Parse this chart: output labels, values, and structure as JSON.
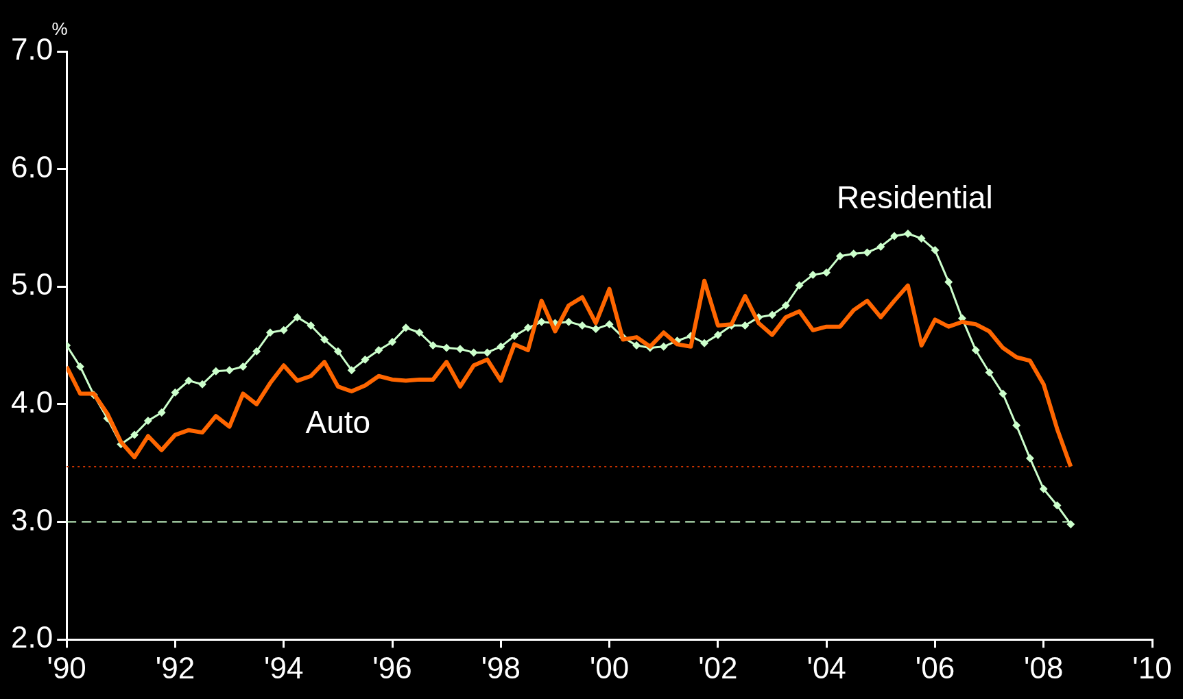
{
  "chart_data": {
    "type": "line",
    "ylabel": "%",
    "grid": false,
    "legend": false,
    "x": [
      1990,
      1990.25,
      1990.5,
      1990.75,
      1991,
      1991.25,
      1991.5,
      1991.75,
      1992,
      1992.25,
      1992.5,
      1992.75,
      1993,
      1993.25,
      1993.5,
      1993.75,
      1994,
      1994.25,
      1994.5,
      1994.75,
      1995,
      1995.25,
      1995.5,
      1995.75,
      1996,
      1996.25,
      1996.5,
      1996.75,
      1997,
      1997.25,
      1997.5,
      1997.75,
      1998,
      1998.25,
      1998.5,
      1998.75,
      1999,
      1999.25,
      1999.5,
      1999.75,
      2000,
      2000.25,
      2000.5,
      2000.75,
      2001,
      2001.25,
      2001.5,
      2001.75,
      2002,
      2002.25,
      2002.5,
      2002.75,
      2003,
      2003.25,
      2003.5,
      2003.75,
      2004,
      2004.25,
      2004.5,
      2004.75,
      2005,
      2005.25,
      2005.5,
      2005.75,
      2006,
      2006.25,
      2006.5,
      2006.75,
      2007,
      2007.25,
      2007.5,
      2007.75,
      2008,
      2008.25,
      2008.5
    ],
    "series": [
      {
        "name": "Residential",
        "color": "#ccffcc",
        "marker": "diamond",
        "values": [
          4.5,
          4.32,
          4.08,
          3.88,
          3.66,
          3.74,
          3.86,
          3.93,
          4.1,
          4.2,
          4.17,
          4.28,
          4.29,
          4.32,
          4.45,
          4.61,
          4.63,
          4.74,
          4.67,
          4.55,
          4.45,
          4.29,
          4.38,
          4.46,
          4.53,
          4.65,
          4.61,
          4.5,
          4.48,
          4.47,
          4.44,
          4.44,
          4.49,
          4.58,
          4.65,
          4.7,
          4.69,
          4.7,
          4.67,
          4.64,
          4.68,
          4.57,
          4.5,
          4.48,
          4.49,
          4.54,
          4.58,
          4.52,
          4.59,
          4.67,
          4.67,
          4.74,
          4.76,
          4.84,
          5.01,
          5.1,
          5.12,
          5.26,
          5.28,
          5.29,
          5.34,
          5.43,
          5.45,
          5.41,
          5.31,
          5.04,
          4.73,
          4.46,
          4.27,
          4.09,
          3.82,
          3.54,
          3.28,
          3.14,
          2.98
        ]
      },
      {
        "name": "Auto",
        "color": "#ff6600",
        "marker": "none",
        "values": [
          4.32,
          4.09,
          4.09,
          3.92,
          3.68,
          3.55,
          3.73,
          3.61,
          3.74,
          3.78,
          3.76,
          3.9,
          3.81,
          4.09,
          4.0,
          4.18,
          4.33,
          4.2,
          4.24,
          4.36,
          4.15,
          4.11,
          4.16,
          4.24,
          4.21,
          4.2,
          4.21,
          4.21,
          4.36,
          4.15,
          4.33,
          4.38,
          4.2,
          4.51,
          4.46,
          4.88,
          4.62,
          4.84,
          4.91,
          4.69,
          4.98,
          4.55,
          4.57,
          4.49,
          4.61,
          4.51,
          4.49,
          5.05,
          4.67,
          4.68,
          4.92,
          4.69,
          4.59,
          4.74,
          4.79,
          4.63,
          4.66,
          4.66,
          4.8,
          4.88,
          4.74,
          4.88,
          5.01,
          4.5,
          4.72,
          4.66,
          4.7,
          4.68,
          4.62,
          4.48,
          4.4,
          4.37,
          4.17,
          3.79,
          3.47
        ]
      }
    ],
    "xlim": [
      1990,
      2010
    ],
    "xticks": [
      {
        "value": 1990,
        "label": "'90"
      },
      {
        "value": 1992,
        "label": "'92"
      },
      {
        "value": 1994,
        "label": "'94"
      },
      {
        "value": 1996,
        "label": "'96"
      },
      {
        "value": 1998,
        "label": "'98"
      },
      {
        "value": 2000,
        "label": "'00"
      },
      {
        "value": 2002,
        "label": "'02"
      },
      {
        "value": 2004,
        "label": "'04"
      },
      {
        "value": 2006,
        "label": "'06"
      },
      {
        "value": 2008,
        "label": "'08"
      },
      {
        "value": 2010,
        "label": "'10"
      }
    ],
    "ylim": [
      2,
      7
    ],
    "yticks": [
      {
        "value": 2,
        "label": "2.0"
      },
      {
        "value": 3,
        "label": "3.0"
      },
      {
        "value": 4,
        "label": "4.0"
      },
      {
        "value": 5,
        "label": "5.0"
      },
      {
        "value": 6,
        "label": "6.0"
      },
      {
        "value": 7,
        "label": "7.0"
      }
    ],
    "ref_lines": [
      {
        "axis": "y",
        "value": 3.47,
        "color": "#cc3300",
        "line_style": "dotted"
      },
      {
        "axis": "y",
        "value": 3,
        "color": "#ccffcc",
        "line_style": "dashed"
      }
    ]
  }
}
